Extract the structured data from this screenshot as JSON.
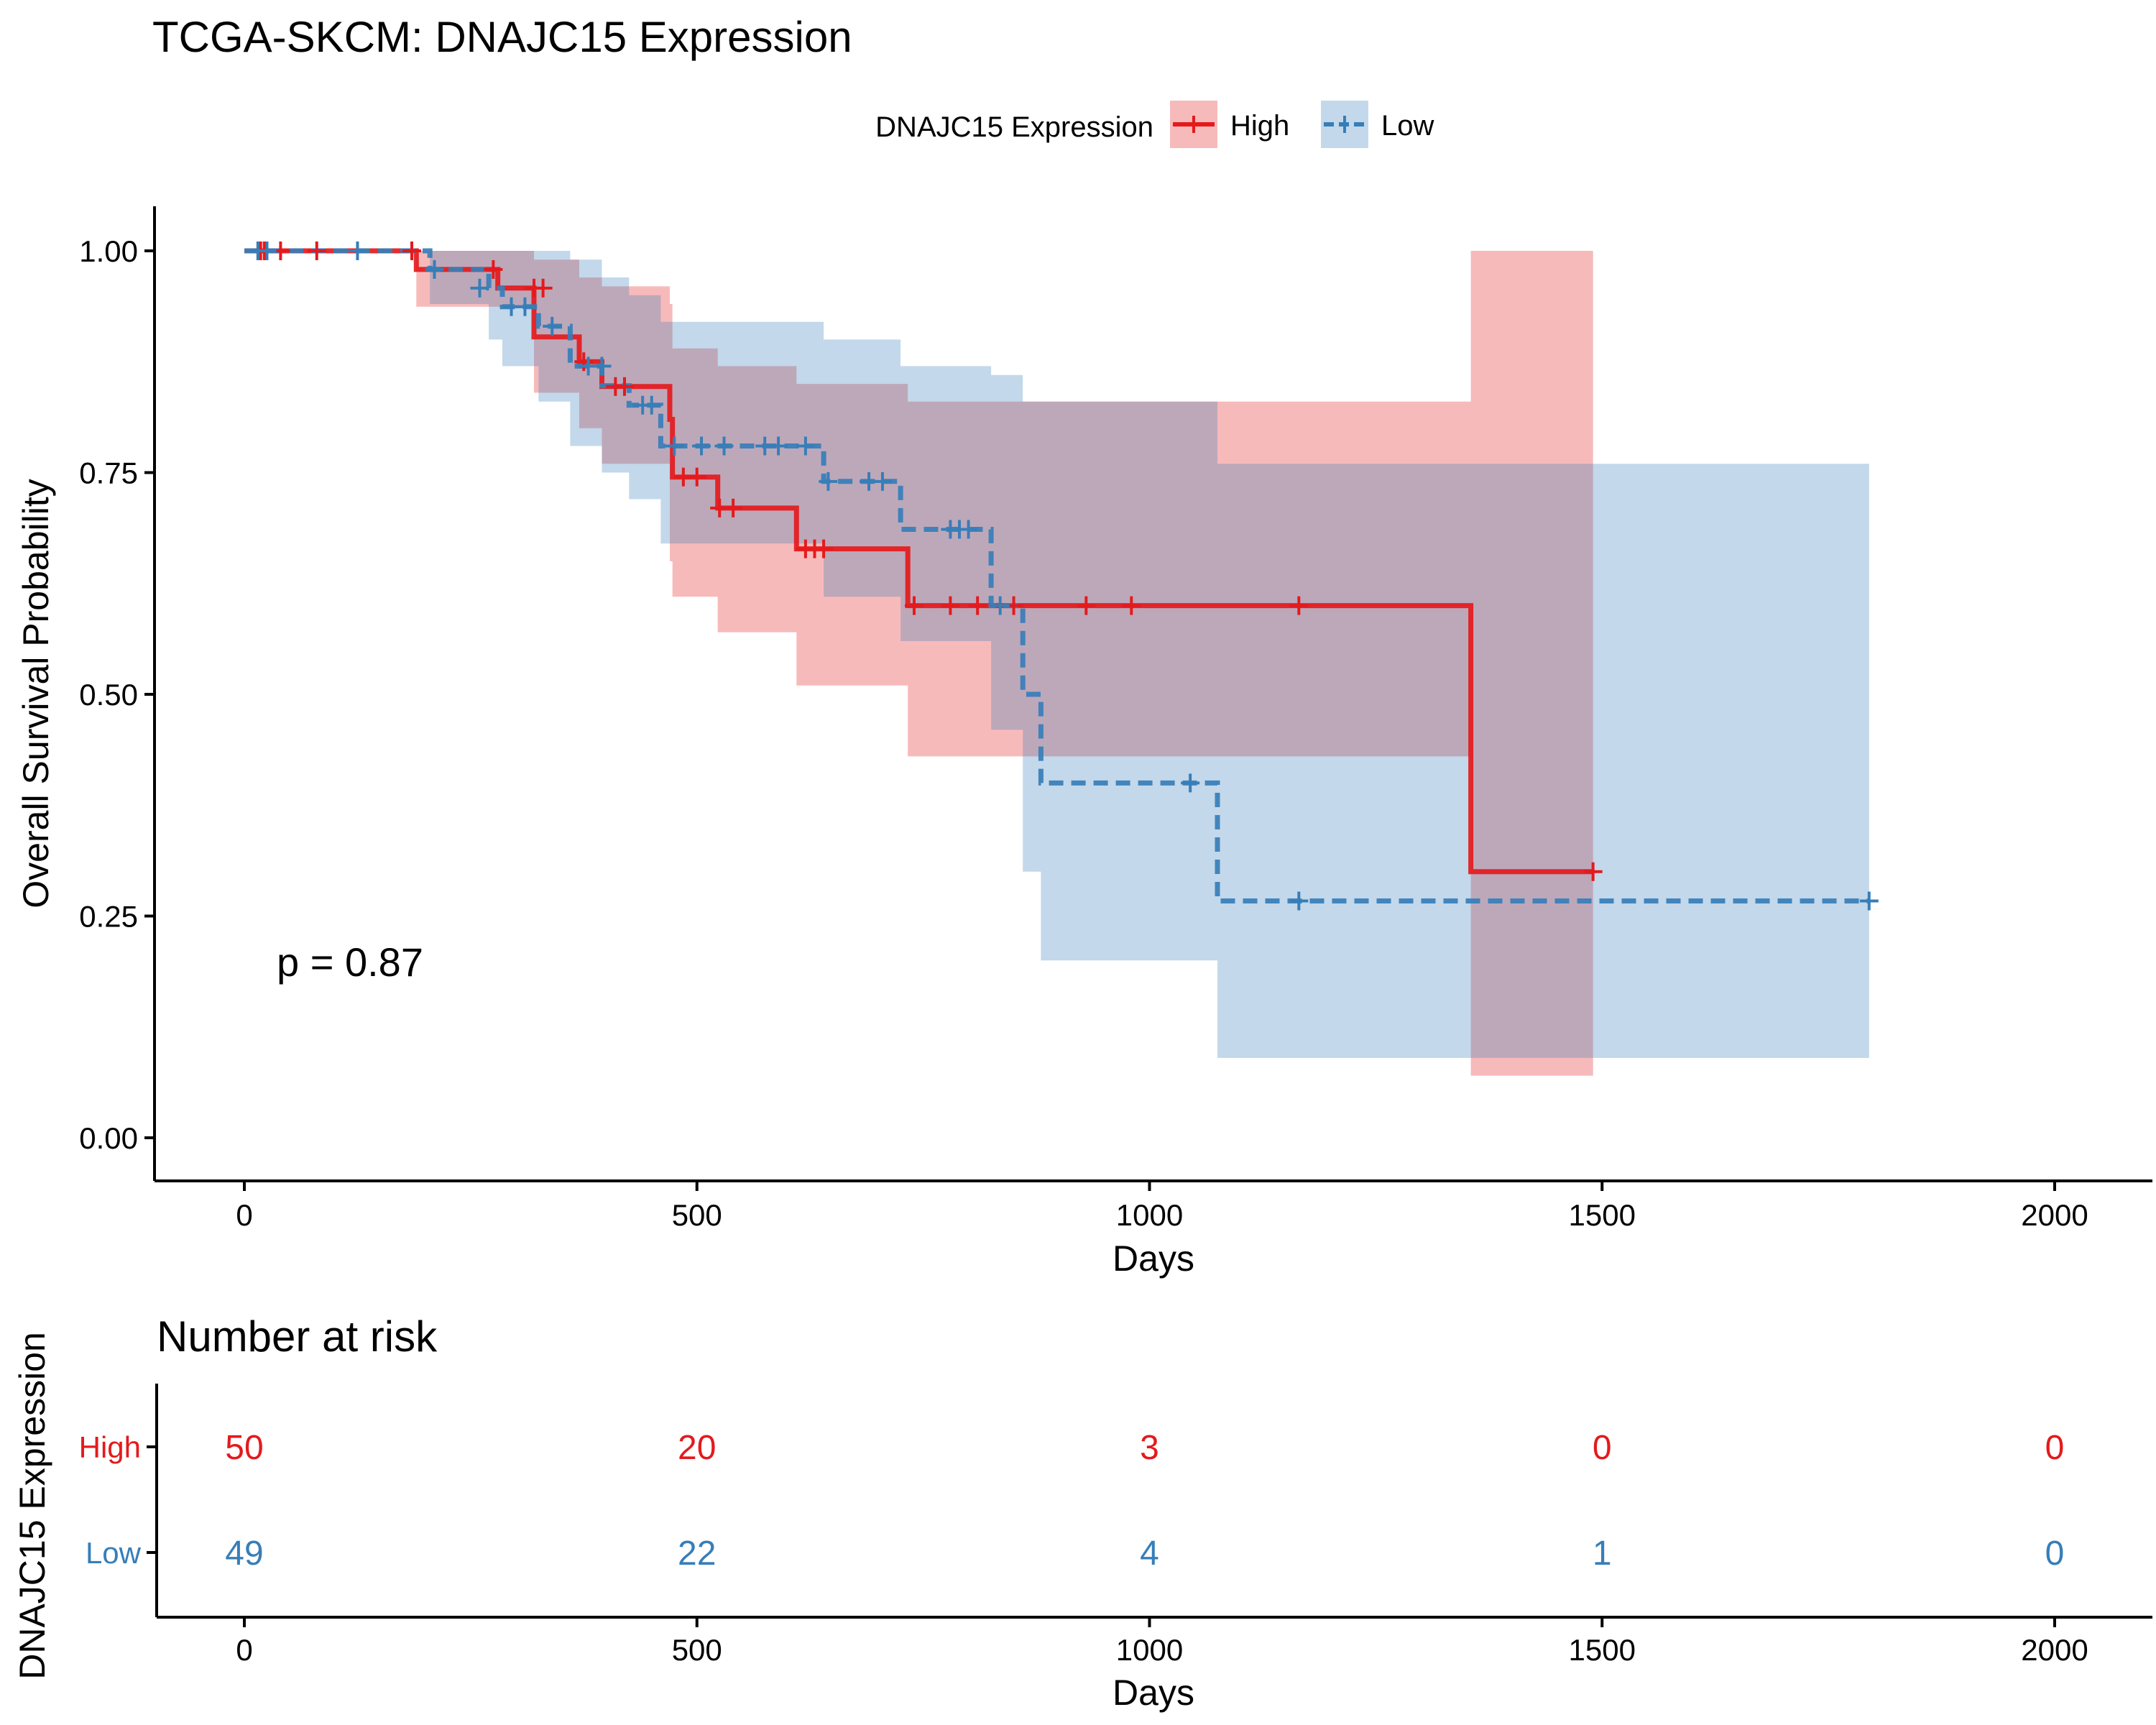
{
  "chart_data": {
    "type": "line",
    "subtype": "kaplan-meier",
    "title": "TCGA-SKCM: DNAJC15 Expression",
    "xlabel": "Days",
    "ylabel": "Overall Survival Probability",
    "xlim": [
      -100,
      2100
    ],
    "ylim": [
      -0.05,
      1.05
    ],
    "x_ticks": [
      0,
      500,
      1000,
      1500,
      2000
    ],
    "x_tick_labels": [
      "0",
      "500",
      "1000",
      "1500",
      "2000"
    ],
    "y_ticks": [
      0,
      0.25,
      0.5,
      0.75,
      1.0
    ],
    "y_tick_labels": [
      "0.00",
      "0.25",
      "0.50",
      "0.75",
      "1.00"
    ],
    "grid": false,
    "legend": {
      "title": "DNAJC15 Expression",
      "placement": "top",
      "entries": [
        "High",
        "Low"
      ]
    },
    "annotation": "p = 0.87",
    "series": [
      {
        "name": "High",
        "color": "#e41a1c",
        "linestyle": "solid",
        "steps": [
          [
            0,
            1.0
          ],
          [
            190,
            0.979
          ],
          [
            280,
            0.958
          ],
          [
            320,
            0.903
          ],
          [
            370,
            0.875
          ],
          [
            395,
            0.847
          ],
          [
            470,
            0.81
          ],
          [
            473,
            0.745
          ],
          [
            523,
            0.71
          ],
          [
            610,
            0.664
          ],
          [
            733,
            0.6
          ],
          [
            1355,
            0.3
          ],
          [
            1490,
            0.3
          ]
        ],
        "ci": [
          [
            0,
            1.0,
            1.0
          ],
          [
            190,
            0.937,
            1.0
          ],
          [
            320,
            0.84,
            0.99
          ],
          [
            370,
            0.8,
            0.97
          ],
          [
            395,
            0.76,
            0.96
          ],
          [
            470,
            0.65,
            0.94
          ],
          [
            473,
            0.61,
            0.89
          ],
          [
            523,
            0.57,
            0.87
          ],
          [
            610,
            0.51,
            0.85
          ],
          [
            733,
            0.43,
            0.83
          ],
          [
            883,
            0.43,
            0.83
          ],
          [
            1355,
            0.07,
            1.0
          ],
          [
            1490,
            0.07,
            1.0
          ]
        ],
        "censor": [
          [
            15,
            1.0
          ],
          [
            18,
            1.0
          ],
          [
            22,
            1.0
          ],
          [
            40,
            1.0
          ],
          [
            80,
            1.0
          ],
          [
            185,
            1.0
          ],
          [
            275,
            0.979
          ],
          [
            320,
            0.958
          ],
          [
            330,
            0.958
          ],
          [
            375,
            0.875
          ],
          [
            410,
            0.847
          ],
          [
            420,
            0.847
          ],
          [
            485,
            0.745
          ],
          [
            500,
            0.745
          ],
          [
            525,
            0.71
          ],
          [
            540,
            0.71
          ],
          [
            620,
            0.664
          ],
          [
            630,
            0.664
          ],
          [
            640,
            0.664
          ],
          [
            740,
            0.6
          ],
          [
            780,
            0.6
          ],
          [
            810,
            0.6
          ],
          [
            850,
            0.6
          ],
          [
            930,
            0.6
          ],
          [
            980,
            0.6
          ],
          [
            1165,
            0.6
          ],
          [
            1490,
            0.3
          ]
        ]
      },
      {
        "name": "Low",
        "color": "#377eb8",
        "linestyle": "dashed",
        "steps": [
          [
            0,
            1.0
          ],
          [
            205,
            0.979
          ],
          [
            270,
            0.958
          ],
          [
            285,
            0.937
          ],
          [
            325,
            0.915
          ],
          [
            360,
            0.87
          ],
          [
            395,
            0.848
          ],
          [
            425,
            0.826
          ],
          [
            460,
            0.78
          ],
          [
            640,
            0.74
          ],
          [
            725,
            0.686
          ],
          [
            825,
            0.6
          ],
          [
            860,
            0.5
          ],
          [
            880,
            0.4
          ],
          [
            1075,
            0.267
          ],
          [
            1795,
            0.267
          ]
        ],
        "ci": [
          [
            0,
            1.0,
            1.0
          ],
          [
            205,
            0.94,
            1.0
          ],
          [
            270,
            0.9,
            1.0
          ],
          [
            285,
            0.87,
            1.0
          ],
          [
            325,
            0.83,
            1.0
          ],
          [
            360,
            0.78,
            0.99
          ],
          [
            395,
            0.75,
            0.97
          ],
          [
            425,
            0.72,
            0.95
          ],
          [
            460,
            0.67,
            0.92
          ],
          [
            535,
            0.67,
            0.92
          ],
          [
            640,
            0.61,
            0.9
          ],
          [
            725,
            0.56,
            0.87
          ],
          [
            825,
            0.46,
            0.86
          ],
          [
            860,
            0.3,
            0.83
          ],
          [
            880,
            0.2,
            0.83
          ],
          [
            1075,
            0.09,
            0.76
          ],
          [
            1795,
            0.09,
            0.76
          ]
        ],
        "censor": [
          [
            15,
            1.0
          ],
          [
            25,
            1.0
          ],
          [
            125,
            1.0
          ],
          [
            210,
            0.979
          ],
          [
            260,
            0.958
          ],
          [
            295,
            0.937
          ],
          [
            310,
            0.937
          ],
          [
            340,
            0.915
          ],
          [
            380,
            0.87
          ],
          [
            395,
            0.87
          ],
          [
            440,
            0.826
          ],
          [
            450,
            0.826
          ],
          [
            475,
            0.78
          ],
          [
            505,
            0.78
          ],
          [
            530,
            0.78
          ],
          [
            575,
            0.78
          ],
          [
            590,
            0.78
          ],
          [
            620,
            0.78
          ],
          [
            645,
            0.74
          ],
          [
            690,
            0.74
          ],
          [
            705,
            0.74
          ],
          [
            780,
            0.686
          ],
          [
            790,
            0.686
          ],
          [
            800,
            0.686
          ],
          [
            835,
            0.6
          ],
          [
            1045,
            0.4
          ],
          [
            1165,
            0.267
          ],
          [
            1795,
            0.267
          ]
        ]
      }
    ],
    "risk_table": {
      "title": "Number at risk",
      "ylabel": "DNAJC15 Expression",
      "xlabel": "Days",
      "times": [
        0,
        500,
        1000,
        1500,
        2000
      ],
      "time_labels": [
        "0",
        "500",
        "1000",
        "1500",
        "2000"
      ],
      "groups": [
        {
          "name": "High",
          "color": "#e41a1c",
          "counts": [
            "50",
            "20",
            "3",
            "0",
            "0"
          ]
        },
        {
          "name": "Low",
          "color": "#377eb8",
          "counts": [
            "49",
            "22",
            "4",
            "1",
            "0"
          ]
        }
      ]
    }
  }
}
